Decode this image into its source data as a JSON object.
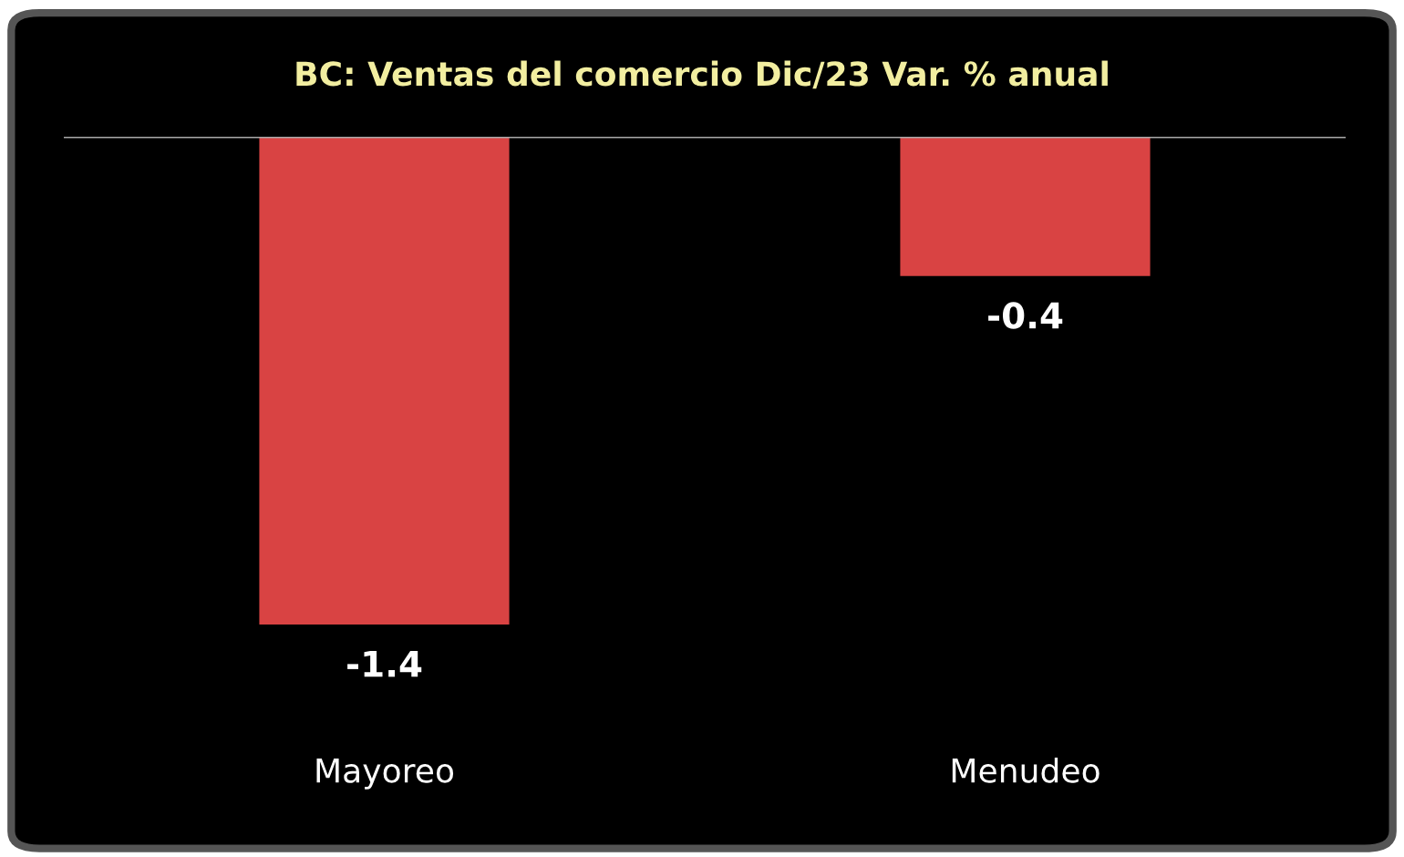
{
  "chart_data": {
    "type": "bar",
    "title": "BC: Ventas del comercio Dic/23 Var. % anual",
    "categories": [
      "Mayoreo",
      "Menudeo"
    ],
    "values": [
      -1.4,
      -0.4
    ],
    "color": "#d94343",
    "data_labels": true
  }
}
